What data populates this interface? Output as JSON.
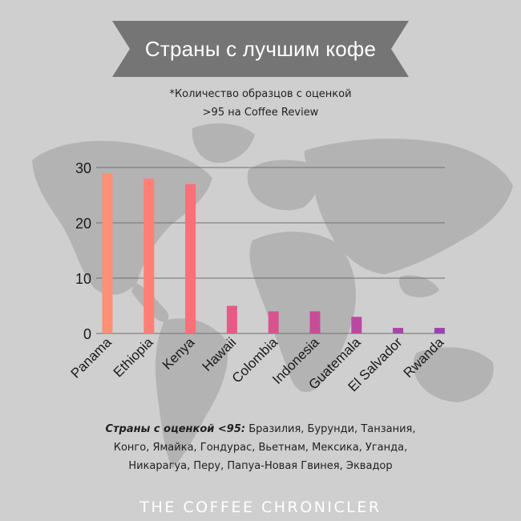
{
  "colors": {
    "background": "#cfcfcf",
    "map_land": "#b3b3b3",
    "banner": "#757575",
    "grid": "#6f6f6f"
  },
  "banner": {
    "title": "Страны с лучшим кофе"
  },
  "subtitle": {
    "line1": "*Количество образцов с оценкой",
    "line2": ">95 на Coffee Review"
  },
  "footnote": {
    "label": "Страны с оценкой <95:",
    "line1_text": "Бразилия, Бурунди, Танзания,",
    "line2": "Конго, Ямайка, Гондурас, Вьетнам, Мексика, Уганда,",
    "line3": "Никарагуа, Перу, Папуа-Новая Гвинея, Эквадор"
  },
  "brand": "THE COFFEE CHRONICLER",
  "chart_data": {
    "type": "bar",
    "title": "Страны с лучшим кофе",
    "categories": [
      "Panama",
      "Ethiopia",
      "Kenya",
      "Hawaii",
      "Colombia",
      "Indonesia",
      "Guatemala",
      "El Salvador",
      "Rwanda"
    ],
    "values": [
      29,
      28,
      27,
      5,
      4,
      4,
      3,
      1,
      1
    ],
    "bar_colors": [
      "#ff9074",
      "#ff7f76",
      "#fa6f78",
      "#e85a86",
      "#d9538f",
      "#c94c98",
      "#bb48a0",
      "#a944a8",
      "#9b43ae"
    ],
    "yticks": [
      0,
      10,
      20,
      30
    ],
    "ylim": [
      0,
      30
    ],
    "xlabel": "",
    "ylabel": "",
    "grid": true,
    "legend": "none"
  }
}
